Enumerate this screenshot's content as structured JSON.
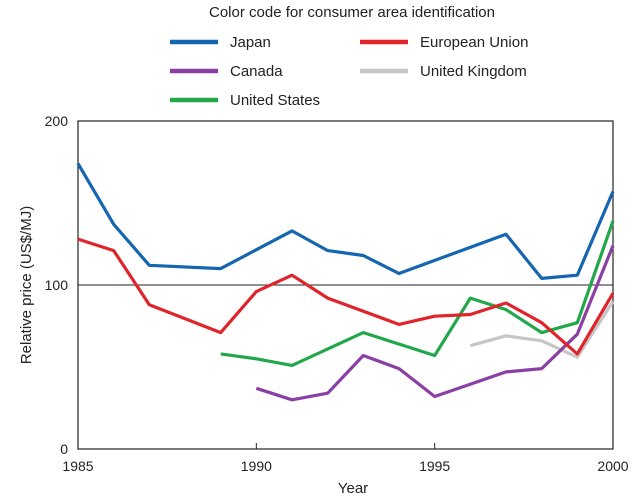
{
  "chart_data": {
    "type": "line",
    "legend_title": "Color code for consumer area identification",
    "xlabel": "Year",
    "ylabel": "Relative price (US$/MJ)",
    "xlim": [
      1985,
      2000
    ],
    "ylim": [
      0,
      200
    ],
    "xticks": [
      "1985",
      "1990",
      "1995",
      "2000"
    ],
    "yticks": [
      "0",
      "100",
      "200"
    ],
    "reference_line_y": 100,
    "grid": false,
    "legend_position": "top",
    "series": [
      {
        "name": "Japan",
        "color": "#1565b0",
        "x": [
          1985,
          1986,
          1987,
          1989,
          1991,
          1992,
          1993,
          1994,
          1997,
          1998,
          1999,
          2000
        ],
        "y": [
          174,
          137,
          112,
          110,
          133,
          121,
          118,
          107,
          131,
          104,
          106,
          157
        ]
      },
      {
        "name": "European Union",
        "color": "#e0242b",
        "x": [
          1985,
          1986,
          1987,
          1989,
          1990,
          1991,
          1992,
          1994,
          1995,
          1996,
          1997,
          1998,
          1999,
          2000
        ],
        "y": [
          128,
          121,
          88,
          71,
          96,
          106,
          92,
          76,
          81,
          82,
          89,
          77,
          58,
          95
        ]
      },
      {
        "name": "Canada",
        "color": "#8a3fa4",
        "x": [
          1990,
          1991,
          1992,
          1993,
          1994,
          1995,
          1997,
          1998,
          1999,
          2000
        ],
        "y": [
          37,
          30,
          34,
          57,
          49,
          32,
          47,
          49,
          70,
          124
        ]
      },
      {
        "name": "United Kingdom",
        "color": "#c6c6c6",
        "x": [
          1996,
          1997,
          1998,
          1999,
          2000
        ],
        "y": [
          63,
          69,
          66,
          56,
          90
        ]
      },
      {
        "name": "United States",
        "color": "#22a84a",
        "x": [
          1989,
          1990,
          1991,
          1993,
          1995,
          1996,
          1997,
          1998,
          1999,
          2000
        ],
        "y": [
          58,
          55,
          51,
          71,
          57,
          92,
          85,
          71,
          77,
          139
        ]
      }
    ]
  }
}
